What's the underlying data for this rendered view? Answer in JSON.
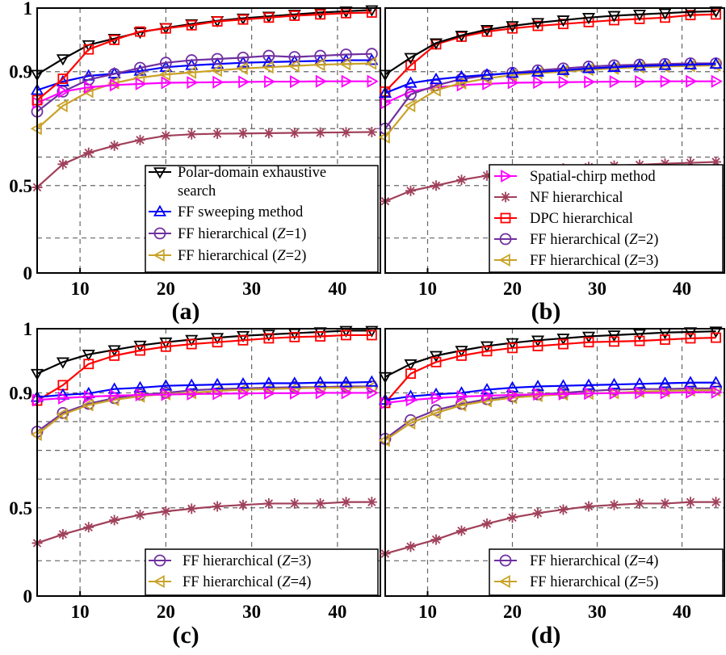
{
  "chart_data": [
    {
      "type": "line",
      "caption": "(a)",
      "x": [
        5,
        8,
        11,
        14,
        17,
        20,
        23,
        26,
        29,
        32,
        35,
        38,
        41,
        44
      ],
      "xticks": [
        10,
        20,
        30,
        40
      ],
      "yticks": [
        {
          "v": 0,
          "label": "0"
        },
        {
          "v": 0.5,
          "label": "0.5"
        },
        {
          "v": 0.9,
          "label": "0.9"
        },
        {
          "v": 1,
          "label": "1"
        }
      ],
      "xlim": [
        5,
        45
      ],
      "grid": true,
      "legend_position": "bottom-right",
      "series": [
        {
          "name": "Polar-domain exhaustive search",
          "color": "#000000",
          "marker": "triangle-down",
          "values": [
            0.89,
            0.92,
            0.942,
            0.952,
            0.962,
            0.969,
            0.975,
            0.98,
            0.984,
            0.987,
            0.99,
            0.993,
            0.995,
            0.997
          ]
        },
        {
          "name": "FF sweeping method",
          "color": "#0000ff",
          "marker": "triangle-up",
          "values": [
            0.835,
            0.865,
            0.885,
            0.893,
            0.901,
            0.907,
            0.91,
            0.912,
            0.914,
            0.915,
            0.916,
            0.917,
            0.918,
            0.918
          ]
        },
        {
          "name": "FF hierarchical (Z=1)",
          "color": "#7030a0",
          "marker": "circle",
          "values": [
            0.76,
            0.83,
            0.872,
            0.892,
            0.906,
            0.914,
            0.918,
            0.92,
            0.922,
            0.925,
            0.923,
            0.925,
            0.927,
            0.928
          ]
        },
        {
          "name": "FF hierarchical (Z=2)",
          "color": "#c9a227",
          "marker": "triangle-left",
          "values": [
            0.7,
            0.78,
            0.83,
            0.86,
            0.879,
            0.89,
            0.897,
            0.902,
            0.905,
            0.907,
            0.909,
            0.911,
            0.912,
            0.913
          ]
        },
        {
          "name": "",
          "color": "#ff00ff",
          "marker": "triangle-right",
          "values": [
            0.79,
            0.83,
            0.845,
            0.853,
            0.857,
            0.861,
            0.862,
            0.863,
            0.864,
            0.865,
            0.865,
            0.866,
            0.866,
            0.866
          ]
        },
        {
          "name": "",
          "color": "#a0405a",
          "marker": "asterisk",
          "values": [
            0.49,
            0.575,
            0.615,
            0.64,
            0.66,
            0.675,
            0.68,
            0.682,
            0.683,
            0.684,
            0.685,
            0.686,
            0.687,
            0.688
          ]
        },
        {
          "name": "",
          "color": "#ff0000",
          "marker": "square",
          "values": [
            0.8,
            0.875,
            0.935,
            0.95,
            0.963,
            0.968,
            0.973,
            0.979,
            0.982,
            0.985,
            0.988,
            0.99,
            0.992,
            0.993
          ]
        }
      ]
    },
    {
      "type": "line",
      "caption": "(b)",
      "x": [
        5,
        8,
        11,
        14,
        17,
        20,
        23,
        26,
        29,
        32,
        35,
        38,
        41,
        44
      ],
      "xticks": [
        10,
        20,
        30,
        40
      ],
      "yticks": [
        {
          "v": 0,
          "label": ""
        },
        {
          "v": 0.5,
          "label": ""
        },
        {
          "v": 0.9,
          "label": ""
        },
        {
          "v": 1,
          "label": ""
        }
      ],
      "xlim": [
        5,
        45
      ],
      "grid": true,
      "legend_position": "bottom-right",
      "series": [
        {
          "name": "Spatial-chirp method",
          "color": "#ff00ff",
          "marker": "triangle-right",
          "values": [
            0.79,
            0.83,
            0.845,
            0.853,
            0.857,
            0.861,
            0.862,
            0.863,
            0.864,
            0.865,
            0.865,
            0.866,
            0.866,
            0.866
          ]
        },
        {
          "name": "NF hierarchical",
          "color": "#a0405a",
          "marker": "asterisk",
          "values": [
            0.41,
            0.47,
            0.5,
            0.52,
            0.535,
            0.545,
            0.553,
            0.56,
            0.565,
            0.57,
            0.573,
            0.577,
            0.58,
            0.583
          ]
        },
        {
          "name": "DPC hierarchical",
          "color": "#ff0000",
          "marker": "square",
          "values": [
            0.83,
            0.91,
            0.943,
            0.955,
            0.963,
            0.968,
            0.972,
            0.975,
            0.978,
            0.981,
            0.983,
            0.985,
            0.989,
            0.99
          ]
        },
        {
          "name": "FF hierarchical (Z=2)",
          "color": "#7030a0",
          "marker": "circle",
          "values": [
            0.7,
            0.82,
            0.852,
            0.874,
            0.887,
            0.896,
            0.902,
            0.905,
            0.908,
            0.91,
            0.911,
            0.912,
            0.913,
            0.913
          ]
        },
        {
          "name": "FF hierarchical (Z=3)",
          "color": "#c9a227",
          "marker": "triangle-left",
          "values": [
            0.67,
            0.78,
            0.835,
            0.86,
            0.876,
            0.888,
            0.895,
            0.9,
            0.903,
            0.905,
            0.907,
            0.908,
            0.909,
            0.91
          ]
        },
        {
          "name": "",
          "color": "#000000",
          "marker": "triangle-down",
          "values": [
            0.89,
            0.922,
            0.945,
            0.957,
            0.966,
            0.972,
            0.977,
            0.981,
            0.985,
            0.988,
            0.99,
            0.992,
            0.994,
            0.995
          ]
        },
        {
          "name": "",
          "color": "#0000ff",
          "marker": "triangle-up",
          "values": [
            0.825,
            0.86,
            0.873,
            0.882,
            0.889,
            0.895,
            0.899,
            0.902,
            0.905,
            0.907,
            0.909,
            0.91,
            0.911,
            0.912
          ]
        }
      ]
    },
    {
      "type": "line",
      "caption": "(c)",
      "x": [
        5,
        8,
        11,
        14,
        17,
        20,
        23,
        26,
        29,
        32,
        35,
        38,
        41,
        44
      ],
      "xticks": [
        10,
        20,
        30,
        40
      ],
      "yticks": [
        {
          "v": 0,
          "label": "0"
        },
        {
          "v": 0.5,
          "label": "0.5"
        },
        {
          "v": 0.9,
          "label": "0.9"
        },
        {
          "v": 1,
          "label": "1"
        }
      ],
      "xlim": [
        5,
        45
      ],
      "grid": true,
      "legend_position": "bottom-right",
      "series": [
        {
          "name": "FF hierarchical (Z=3)",
          "color": "#7030a0",
          "marker": "circle",
          "values": [
            0.765,
            0.83,
            0.862,
            0.882,
            0.894,
            0.9,
            0.904,
            0.906,
            0.907,
            0.908,
            0.909,
            0.909,
            0.91,
            0.91
          ]
        },
        {
          "name": "FF hierarchical (Z=4)",
          "color": "#c9a227",
          "marker": "triangle-left",
          "values": [
            0.755,
            0.825,
            0.858,
            0.876,
            0.888,
            0.896,
            0.9,
            0.903,
            0.905,
            0.906,
            0.907,
            0.908,
            0.908,
            0.909
          ]
        },
        {
          "name": "",
          "color": "#000000",
          "marker": "triangle-down",
          "values": [
            0.93,
            0.948,
            0.96,
            0.967,
            0.974,
            0.979,
            0.983,
            0.986,
            0.989,
            0.991,
            0.993,
            0.995,
            0.997,
            0.997
          ]
        },
        {
          "name": "",
          "color": "#ff0000",
          "marker": "square",
          "values": [
            0.873,
            0.912,
            0.945,
            0.958,
            0.966,
            0.972,
            0.976,
            0.979,
            0.982,
            0.985,
            0.987,
            0.988,
            0.99,
            0.99
          ]
        },
        {
          "name": "",
          "color": "#0000ff",
          "marker": "triangle-up",
          "values": [
            0.885,
            0.893,
            0.898,
            0.906,
            0.908,
            0.911,
            0.912,
            0.913,
            0.914,
            0.915,
            0.915,
            0.916,
            0.916,
            0.917
          ]
        },
        {
          "name": "",
          "color": "#ff00ff",
          "marker": "triangle-right",
          "values": [
            0.875,
            0.882,
            0.887,
            0.89,
            0.893,
            0.894,
            0.896,
            0.897,
            0.898,
            0.899,
            0.899,
            0.9,
            0.9,
            0.9
          ]
        },
        {
          "name": "",
          "color": "#a0405a",
          "marker": "asterisk",
          "values": [
            0.3,
            0.35,
            0.39,
            0.43,
            0.46,
            0.48,
            0.495,
            0.505,
            0.51,
            0.515,
            0.515,
            0.515,
            0.52,
            0.52
          ]
        }
      ]
    },
    {
      "type": "line",
      "caption": "(d)",
      "x": [
        5,
        8,
        11,
        14,
        17,
        20,
        23,
        26,
        29,
        32,
        35,
        38,
        41,
        44
      ],
      "xticks": [
        10,
        20,
        30,
        40
      ],
      "yticks": [
        {
          "v": 0,
          "label": ""
        },
        {
          "v": 0.5,
          "label": ""
        },
        {
          "v": 0.9,
          "label": ""
        },
        {
          "v": 1,
          "label": ""
        }
      ],
      "xlim": [
        5,
        45
      ],
      "grid": true,
      "legend_position": "bottom-right",
      "series": [
        {
          "name": "FF hierarchical (Z=4)",
          "color": "#7030a0",
          "marker": "circle",
          "values": [
            0.74,
            0.805,
            0.84,
            0.862,
            0.878,
            0.888,
            0.895,
            0.9,
            0.903,
            0.905,
            0.906,
            0.906,
            0.907,
            0.907
          ]
        },
        {
          "name": "FF hierarchical (Z=5)",
          "color": "#c9a227",
          "marker": "triangle-left",
          "values": [
            0.735,
            0.795,
            0.83,
            0.857,
            0.872,
            0.883,
            0.89,
            0.895,
            0.898,
            0.9,
            0.902,
            0.903,
            0.904,
            0.904
          ]
        },
        {
          "name": "",
          "color": "#000000",
          "marker": "triangle-down",
          "values": [
            0.925,
            0.945,
            0.958,
            0.966,
            0.973,
            0.978,
            0.982,
            0.985,
            0.988,
            0.99,
            0.992,
            0.994,
            0.995,
            0.996
          ]
        },
        {
          "name": "",
          "color": "#ff0000",
          "marker": "square",
          "values": [
            0.865,
            0.93,
            0.948,
            0.958,
            0.965,
            0.97,
            0.973,
            0.976,
            0.979,
            0.98,
            0.981,
            0.983,
            0.985,
            0.986
          ]
        },
        {
          "name": "",
          "color": "#0000ff",
          "marker": "triangle-up",
          "values": [
            0.875,
            0.888,
            0.895,
            0.9,
            0.905,
            0.908,
            0.91,
            0.911,
            0.912,
            0.913,
            0.914,
            0.915,
            0.916,
            0.916
          ]
        },
        {
          "name": "",
          "color": "#ff00ff",
          "marker": "triangle-right",
          "values": [
            0.865,
            0.875,
            0.882,
            0.887,
            0.89,
            0.893,
            0.895,
            0.896,
            0.898,
            0.899,
            0.9,
            0.9,
            0.901,
            0.901
          ]
        },
        {
          "name": "",
          "color": "#a0405a",
          "marker": "asterisk",
          "values": [
            0.24,
            0.28,
            0.32,
            0.37,
            0.41,
            0.445,
            0.47,
            0.49,
            0.505,
            0.51,
            0.515,
            0.515,
            0.52,
            0.52
          ]
        }
      ]
    }
  ]
}
